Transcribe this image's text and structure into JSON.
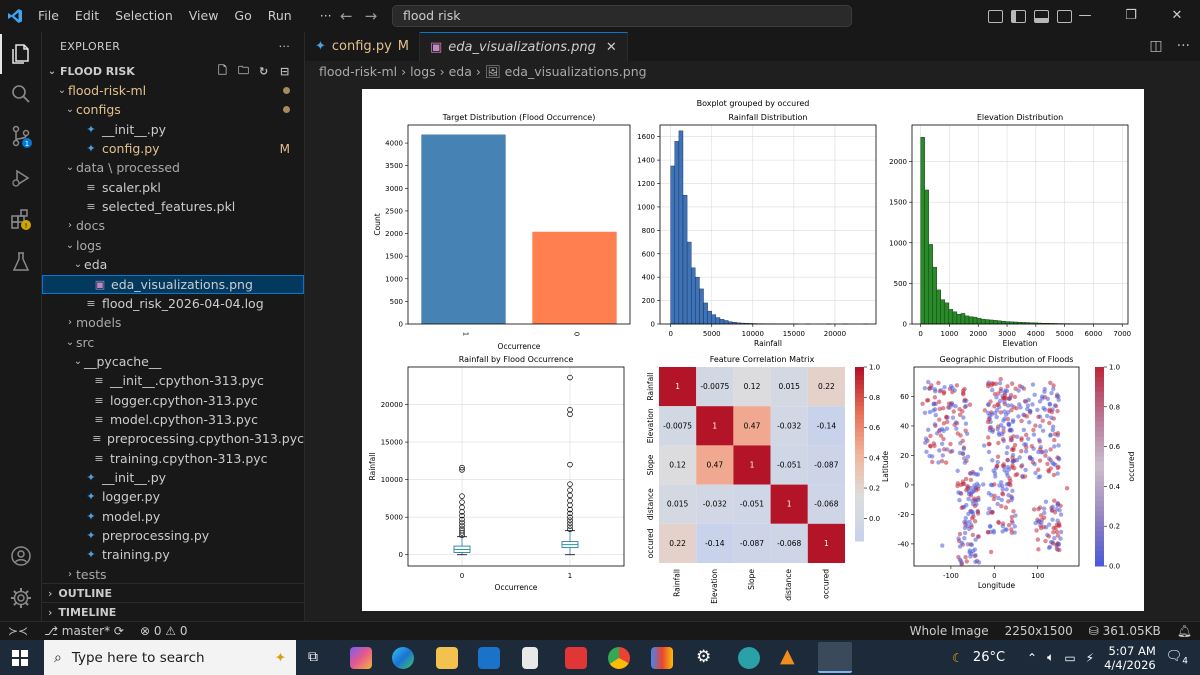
{
  "titlebar": {
    "menu": [
      "File",
      "Edit",
      "Selection",
      "View",
      "Go",
      "Run",
      "···"
    ],
    "search_text": "flood risk",
    "window_controls": [
      "—",
      "❐",
      "✕"
    ]
  },
  "explorer": {
    "header": "EXPLORER",
    "header_more": "···",
    "root": "FLOOD RISK",
    "items": [
      {
        "label": "flood-risk-ml",
        "kind": "folder",
        "open": true,
        "depth": 1,
        "dot": true
      },
      {
        "label": "configs",
        "kind": "folder",
        "open": true,
        "depth": 2,
        "dot": true
      },
      {
        "label": "__init__.py",
        "kind": "py",
        "depth": 3
      },
      {
        "label": "config.py",
        "kind": "py",
        "depth": 3,
        "badge": "M"
      },
      {
        "label": "data \\ processed",
        "kind": "folder",
        "open": true,
        "depth": 2
      },
      {
        "label": "scaler.pkl",
        "kind": "file",
        "depth": 3
      },
      {
        "label": "selected_features.pkl",
        "kind": "file",
        "depth": 3
      },
      {
        "label": "docs",
        "kind": "folder",
        "open": false,
        "depth": 2
      },
      {
        "label": "logs",
        "kind": "folder",
        "open": true,
        "depth": 2
      },
      {
        "label": "eda",
        "kind": "folder",
        "open": true,
        "depth": 3
      },
      {
        "label": "eda_visualizations.png",
        "kind": "image",
        "depth": 4,
        "selected": true
      },
      {
        "label": "flood_risk_2026-04-04.log",
        "kind": "file",
        "depth": 3
      },
      {
        "label": "models",
        "kind": "folder",
        "open": false,
        "depth": 2
      },
      {
        "label": "src",
        "kind": "folder",
        "open": true,
        "depth": 2
      },
      {
        "label": "__pycache__",
        "kind": "folder",
        "open": true,
        "depth": 3
      },
      {
        "label": "__init__.cpython-313.pyc",
        "kind": "file",
        "depth": 4
      },
      {
        "label": "logger.cpython-313.pyc",
        "kind": "file",
        "depth": 4
      },
      {
        "label": "model.cpython-313.pyc",
        "kind": "file",
        "depth": 4
      },
      {
        "label": "preprocessing.cpython-313.pyc",
        "kind": "file",
        "depth": 4
      },
      {
        "label": "training.cpython-313.pyc",
        "kind": "file",
        "depth": 4
      },
      {
        "label": "__init__.py",
        "kind": "py",
        "depth": 3
      },
      {
        "label": "logger.py",
        "kind": "py",
        "depth": 3
      },
      {
        "label": "model.py",
        "kind": "py",
        "depth": 3
      },
      {
        "label": "preprocessing.py",
        "kind": "py",
        "depth": 3
      },
      {
        "label": "training.py",
        "kind": "py",
        "depth": 3
      },
      {
        "label": "tests",
        "kind": "folder",
        "open": false,
        "depth": 2
      }
    ],
    "sections": [
      "OUTLINE",
      "TIMELINE"
    ]
  },
  "tabs": [
    {
      "label": "config.py",
      "badge": "M",
      "active": false
    },
    {
      "label": "eda_visualizations.png",
      "close": "✕",
      "active": true
    }
  ],
  "breadcrumb": "flood-risk-ml › logs › eda › 🖼 eda_visualizations.png",
  "status": {
    "branch": "master*",
    "problems": "⊗ 0 ⚠ 0",
    "view": "Whole Image",
    "dims": "2250x1500",
    "size": "361.05KB"
  },
  "taskbar": {
    "search_placeholder": "Type here to search",
    "weather": "26°C",
    "time": "5:07 AM",
    "date": "4/4/2026",
    "notif": "4"
  },
  "chart_data": [
    {
      "type": "bar",
      "title": "Target Distribution (Flood Occurrence)",
      "xlabel": "Occurrence",
      "ylabel": "Count",
      "categories": [
        "1",
        "0"
      ],
      "values": [
        4190,
        2040
      ],
      "colors": [
        "#4682b4",
        "#ff7f50"
      ],
      "ylim": [
        0,
        4400
      ],
      "yticks": [
        0,
        500,
        1000,
        1500,
        2000,
        2500,
        3000,
        3500,
        4000
      ]
    },
    {
      "type": "bar",
      "title": "Rainfall Distribution",
      "xlabel": "Rainfall",
      "ylabel": "",
      "bin_width": 500,
      "x_start": 0,
      "values": [
        1350,
        1560,
        1650,
        1100,
        700,
        480,
        400,
        300,
        180,
        110,
        80,
        55,
        40,
        30,
        20,
        15,
        10,
        8,
        6,
        5,
        4,
        3,
        3,
        2,
        2,
        2,
        1,
        1,
        1,
        1,
        1,
        0,
        0,
        1,
        0,
        0,
        0,
        0,
        1,
        0,
        0,
        0,
        1,
        0,
        0,
        0,
        0,
        1
      ],
      "xlim": [
        -1300,
        25000
      ],
      "ylim": [
        0,
        1700
      ],
      "xticks": [
        0,
        5000,
        10000,
        15000,
        20000
      ],
      "yticks": [
        0,
        200,
        400,
        600,
        800,
        1000,
        1200,
        1400,
        1600
      ]
    },
    {
      "type": "bar",
      "title": "Elevation Distribution",
      "xlabel": "Elevation",
      "ylabel": "",
      "bin_width": 140,
      "x_start": 0,
      "values": [
        2300,
        1650,
        980,
        700,
        420,
        300,
        260,
        180,
        150,
        120,
        130,
        100,
        90,
        85,
        70,
        60,
        55,
        50,
        45,
        40,
        35,
        30,
        28,
        25,
        22,
        20,
        18,
        15,
        14,
        12,
        10,
        9,
        8,
        7,
        6,
        5,
        5,
        4,
        4,
        3,
        3,
        2,
        2,
        2,
        1,
        1,
        1,
        1,
        1,
        1
      ],
      "xlim": [
        -300,
        7200
      ],
      "ylim": [
        0,
        2450
      ],
      "xticks": [
        0,
        1000,
        2000,
        3000,
        4000,
        5000,
        6000,
        7000
      ],
      "yticks": [
        0,
        500,
        1000,
        1500,
        2000
      ]
    },
    {
      "type": "box",
      "suptitle": "Boxplot grouped by occured",
      "title": "Rainfall by Flood Occurrence",
      "xlabel": "Occurrence",
      "ylabel": "Rainfall",
      "categories": [
        "0",
        "1"
      ],
      "boxes": [
        {
          "q1": 300,
          "median": 700,
          "q3": 1150,
          "whisker_low": 0,
          "whisker_high": 2400
        },
        {
          "q1": 950,
          "median": 1350,
          "q3": 1750,
          "whisker_low": 0,
          "whisker_high": 3200
        }
      ],
      "outliers": [
        [
          2600,
          2900,
          3200,
          3500,
          3900,
          4300,
          4700,
          5200,
          5700,
          6300,
          7000,
          7800,
          11300,
          11600
        ],
        [
          3400,
          3800,
          4200,
          4600,
          5000,
          5500,
          6000,
          6600,
          7200,
          7900,
          8600,
          9400,
          12000,
          18700,
          19300,
          23600
        ]
      ],
      "ylim": [
        -1500,
        25000
      ],
      "yticks": [
        0,
        5000,
        10000,
        15000,
        20000
      ]
    },
    {
      "type": "heatmap",
      "title": "Feature Correlation Matrix",
      "labels": [
        "Rainfall",
        "Elevation",
        "Slope",
        "distance",
        "occured"
      ],
      "values": [
        [
          1,
          -0.0075,
          0.12,
          0.015,
          0.22
        ],
        [
          -0.0075,
          1,
          0.47,
          -0.032,
          -0.14
        ],
        [
          0.12,
          0.47,
          1,
          -0.051,
          -0.087
        ],
        [
          0.015,
          -0.032,
          -0.051,
          1,
          -0.068
        ],
        [
          0.22,
          -0.14,
          -0.087,
          -0.068,
          1
        ]
      ],
      "labels_text": [
        [
          "1",
          "-0.0075",
          "0.12",
          "0.015",
          "0.22"
        ],
        [
          "-0.0075",
          "1",
          "0.47",
          "-0.032",
          "-0.14"
        ],
        [
          "0.12",
          "0.47",
          "1",
          "-0.051",
          "-0.087"
        ],
        [
          "0.015",
          "-0.032",
          "-0.051",
          "1",
          "-0.068"
        ],
        [
          "0.22",
          "-0.14",
          "-0.087",
          "-0.068",
          "1"
        ]
      ],
      "colorbar_ticks": [
        "1.0",
        "0.8",
        "0.6",
        "0.4",
        "0.2",
        "0.0"
      ],
      "colormap": "coolwarm"
    },
    {
      "type": "scatter",
      "title": "Geographic Distribution of Floods",
      "xlabel": "Longitude",
      "ylabel": "Latitude",
      "colorbar_label": "occured",
      "xlim": [
        -185,
        195
      ],
      "ylim": [
        -55,
        80
      ],
      "xticks": [
        -100,
        0,
        100
      ],
      "yticks": [
        -40,
        -20,
        0,
        20,
        40,
        60
      ],
      "colorbar_ticks": [
        "1.0",
        "0.8",
        "0.6",
        "0.4",
        "0.2",
        "0.0"
      ],
      "point_count": 620,
      "colors": [
        "#4a5bd8",
        "#c0283c"
      ]
    }
  ]
}
